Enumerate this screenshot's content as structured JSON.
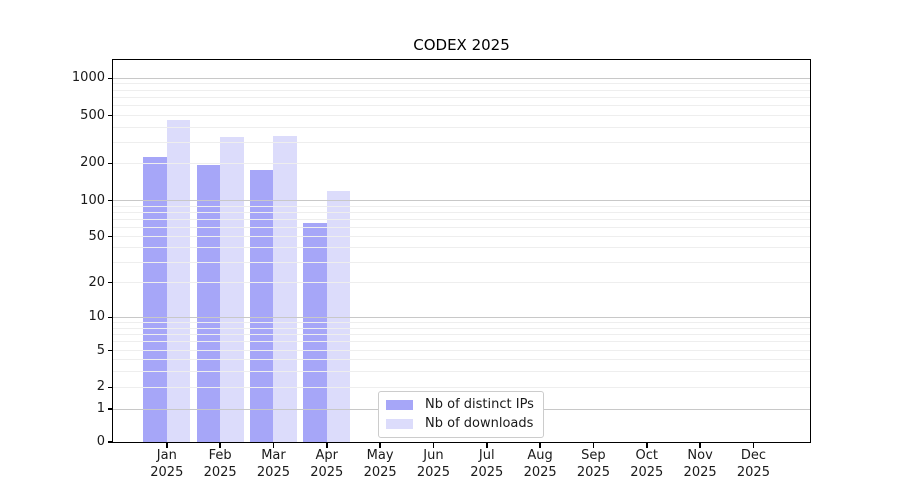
{
  "title": "CODEX 2025",
  "chart_data": {
    "type": "bar",
    "title": "CODEX 2025",
    "categories": [
      "Jan",
      "Feb",
      "Mar",
      "Apr",
      "May",
      "Jun",
      "Jul",
      "Aug",
      "Sep",
      "Oct",
      "Nov",
      "Dec"
    ],
    "year": "2025",
    "series": [
      {
        "name": "Nb of distinct IPs",
        "color": "#a6a6f8",
        "values": [
          225,
          195,
          178,
          65,
          0,
          0,
          0,
          0,
          0,
          0,
          0,
          0
        ]
      },
      {
        "name": "Nb of downloads",
        "color": "#dcdcfb",
        "values": [
          460,
          334,
          338,
          120,
          0,
          0,
          0,
          0,
          0,
          0,
          0,
          0
        ]
      }
    ],
    "xlabel": "",
    "ylabel": "",
    "yticks": [
      0,
      1,
      2,
      5,
      10,
      20,
      50,
      100,
      200,
      500,
      1000
    ],
    "yscale": "symlog",
    "ylim": [
      0,
      1400
    ],
    "grid": true,
    "grid_style": "horizontal minor+major, drawn above bars",
    "legend_position": "lower center inside plot"
  },
  "legend": {
    "items": [
      {
        "label": "Nb of distinct IPs",
        "color": "#a6a6f8"
      },
      {
        "label": "Nb of downloads",
        "color": "#dcdcfb"
      }
    ]
  }
}
